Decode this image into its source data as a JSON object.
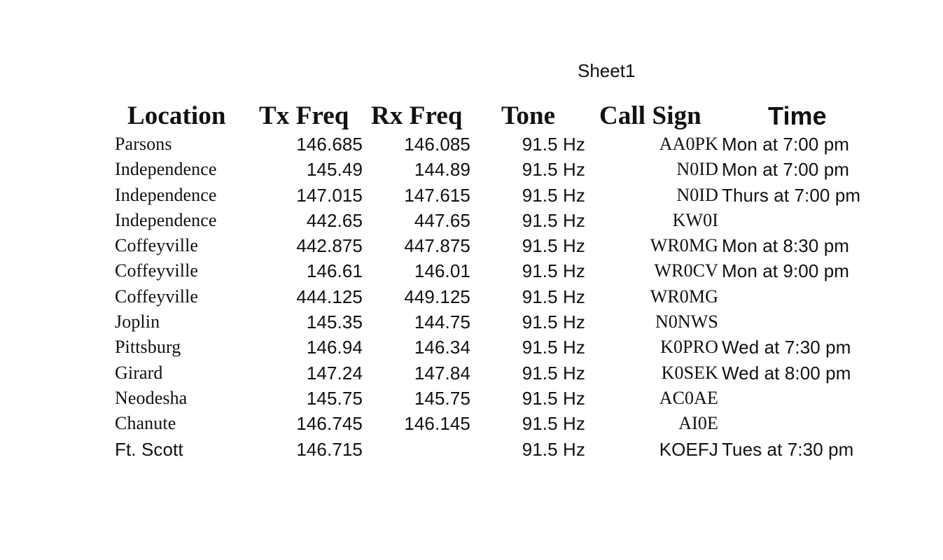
{
  "sheet": {
    "title": "Sheet1"
  },
  "table": {
    "headers": {
      "location": "Location",
      "tx_freq": "Tx Freq",
      "rx_freq": "Rx Freq",
      "tone": "Tone",
      "call_sign": "Call Sign",
      "time": "Time"
    },
    "rows": [
      {
        "location": "Parsons",
        "tx_freq": "146.685",
        "rx_freq": "146.085",
        "tone": "91.5 Hz",
        "call_sign": "AA0PK",
        "time": "Mon at 7:00 pm"
      },
      {
        "location": "Independence",
        "tx_freq": "145.49",
        "rx_freq": "144.89",
        "tone": "91.5 Hz",
        "call_sign": "N0ID",
        "time": "Mon at 7:00 pm"
      },
      {
        "location": "Independence",
        "tx_freq": "147.015",
        "rx_freq": "147.615",
        "tone": "91.5 Hz",
        "call_sign": "N0ID",
        "time": "Thurs at 7:00 pm"
      },
      {
        "location": "Independence",
        "tx_freq": "442.65",
        "rx_freq": "447.65",
        "tone": "91.5 Hz",
        "call_sign": "KW0I",
        "time": ""
      },
      {
        "location": "Coffeyville",
        "tx_freq": "442.875",
        "rx_freq": "447.875",
        "tone": "91.5 Hz",
        "call_sign": "WR0MG",
        "time": "Mon at 8:30 pm"
      },
      {
        "location": "Coffeyville",
        "tx_freq": "146.61",
        "rx_freq": "146.01",
        "tone": "91.5 Hz",
        "call_sign": "WR0CV",
        "time": "Mon at 9:00 pm"
      },
      {
        "location": "Coffeyville",
        "tx_freq": "444.125",
        "rx_freq": "449.125",
        "tone": "91.5 Hz",
        "call_sign": "WR0MG",
        "time": ""
      },
      {
        "location": "Joplin",
        "tx_freq": "145.35",
        "rx_freq": "144.75",
        "tone": "91.5 Hz",
        "call_sign": "N0NWS",
        "time": ""
      },
      {
        "location": "Pittsburg",
        "tx_freq": "146.94",
        "rx_freq": "146.34",
        "tone": "91.5 Hz",
        "call_sign": "K0PRO",
        "time": "Wed at 7:30 pm"
      },
      {
        "location": "Girard",
        "tx_freq": "147.24",
        "rx_freq": "147.84",
        "tone": "91.5 Hz",
        "call_sign": "K0SEK",
        "time": "Wed at 8:00 pm"
      },
      {
        "location": "Neodesha",
        "tx_freq": "145.75",
        "rx_freq": "145.75",
        "tone": "91.5 Hz",
        "call_sign": "AC0AE",
        "time": ""
      },
      {
        "location": "Chanute",
        "tx_freq": "146.745",
        "rx_freq": "146.145",
        "tone": "91.5 Hz",
        "call_sign": "AI0E",
        "time": ""
      },
      {
        "location": "Ft. Scott",
        "tx_freq": "146.715",
        "rx_freq": "",
        "tone": "91.5 Hz",
        "call_sign": "KOEFJ",
        "time": "Tues at 7:30 pm"
      }
    ]
  }
}
